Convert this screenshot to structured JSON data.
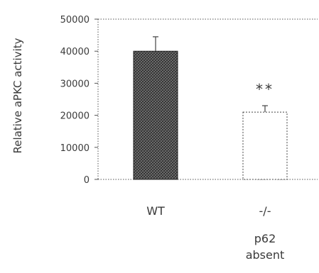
{
  "chart_data": {
    "type": "bar",
    "ylabel": "Relative aPKC activity",
    "ylim": [
      0,
      50000
    ],
    "yticks": [
      0,
      10000,
      20000,
      30000,
      40000,
      50000
    ],
    "categories": [
      "WT",
      "-/-"
    ],
    "category_sublabels": [
      "",
      "p62\nabsent"
    ],
    "values": [
      40000,
      21000
    ],
    "errors": [
      4500,
      2000
    ],
    "annotations": [
      "",
      "**"
    ],
    "bar_styles": [
      "dark-crosshatch",
      "white-dotted-outline"
    ],
    "grid": false
  }
}
